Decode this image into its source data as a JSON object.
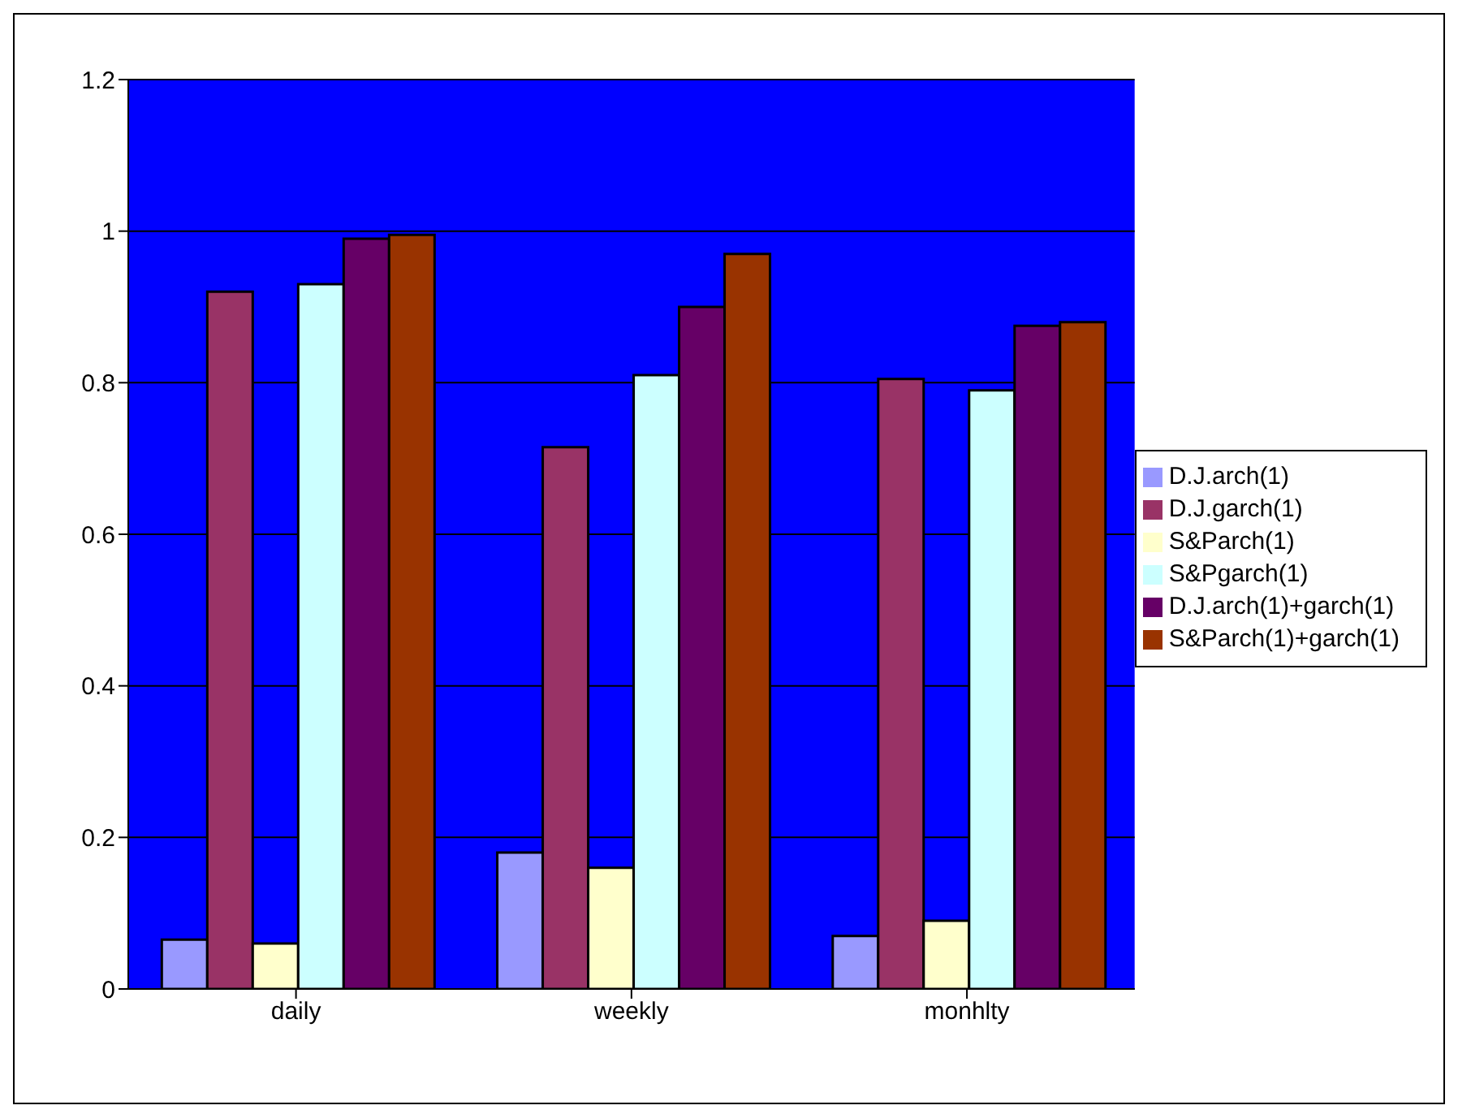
{
  "chart_data": {
    "type": "bar",
    "categories": [
      "daily",
      "weekly",
      "monhlty"
    ],
    "series": [
      {
        "name": "D.J.arch(1)",
        "color": "#9999ff",
        "values": [
          0.065,
          0.18,
          0.07
        ]
      },
      {
        "name": "D.J.garch(1)",
        "color": "#993366",
        "values": [
          0.92,
          0.715,
          0.805
        ]
      },
      {
        "name": "S&Parch(1)",
        "color": "#ffffcc",
        "values": [
          0.06,
          0.16,
          0.09
        ]
      },
      {
        "name": "S&Pgarch(1)",
        "color": "#ccffff",
        "values": [
          0.93,
          0.81,
          0.79
        ]
      },
      {
        "name": "D.J.arch(1)+garch(1)",
        "color": "#660066",
        "values": [
          0.99,
          0.9,
          0.875
        ]
      },
      {
        "name": "S&Parch(1)+garch(1)",
        "color": "#993300",
        "values": [
          0.995,
          0.97,
          0.88
        ]
      }
    ],
    "ylim": [
      0,
      1.2
    ],
    "yticks": [
      0,
      0.2,
      0.4,
      0.6,
      0.8,
      1,
      1.2
    ],
    "grid": "y",
    "legend": "right"
  }
}
